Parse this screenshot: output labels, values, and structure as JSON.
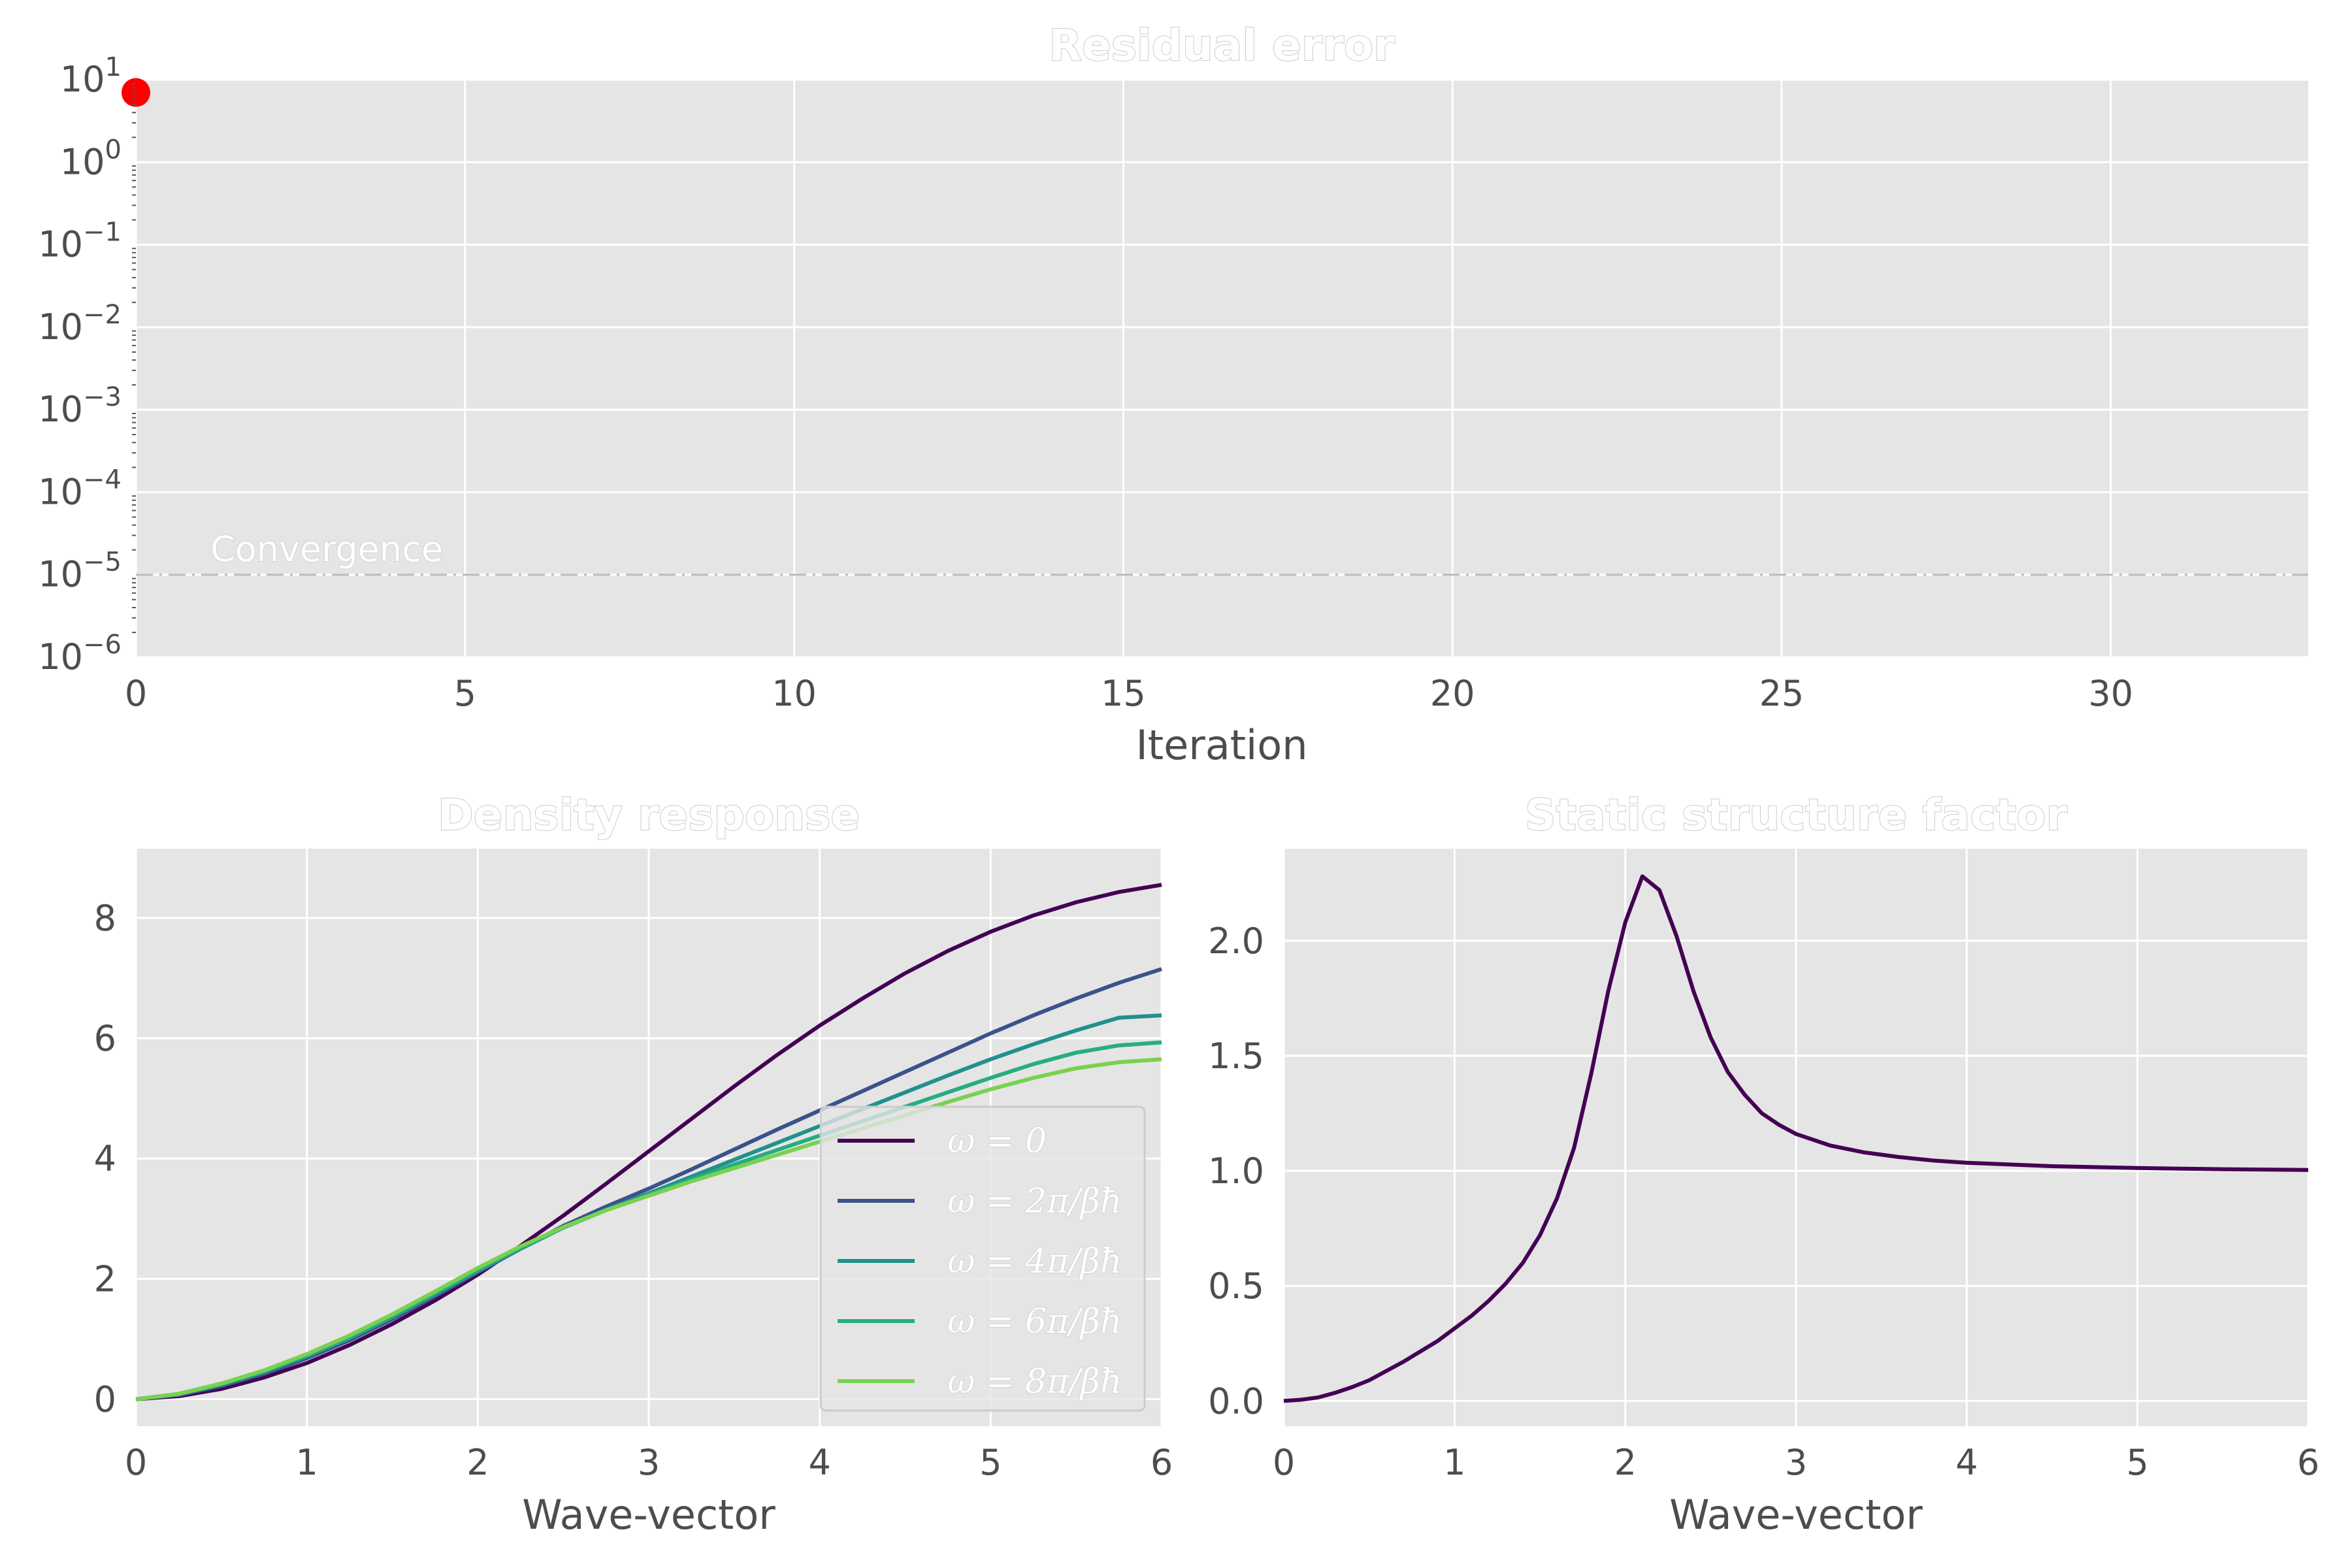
{
  "colors": {
    "axes_bg": "#e5e5e5",
    "grid": "#ffffff",
    "text": "#4d4d4d",
    "marker": "#ff0000"
  },
  "chart_data": [
    {
      "id": "residual",
      "type": "scatter",
      "title": "Residual error",
      "xlabel": "Iteration",
      "ylabel": "",
      "yscale": "log",
      "xlim": [
        0,
        33
      ],
      "ylim": [
        1e-06,
        10
      ],
      "xticks": [
        0,
        5,
        10,
        15,
        20,
        25,
        30
      ],
      "yticks": [
        {
          "base": "10",
          "exp": "1"
        },
        {
          "base": "10",
          "exp": "0"
        },
        {
          "base": "10",
          "exp": "−1"
        },
        {
          "base": "10",
          "exp": "−2"
        },
        {
          "base": "10",
          "exp": "−3"
        },
        {
          "base": "10",
          "exp": "−4"
        },
        {
          "base": "10",
          "exp": "−5"
        },
        {
          "base": "10",
          "exp": "−6"
        }
      ],
      "ytick_values": [
        10.0,
        1.0,
        0.1,
        0.01,
        0.001,
        0.0001,
        1e-05,
        1e-06
      ],
      "points": [
        {
          "x": 0,
          "y": 7
        }
      ],
      "hline": {
        "y": 1e-05,
        "label": "Convergence",
        "style": "dashed"
      },
      "grid": true
    },
    {
      "id": "density",
      "type": "line",
      "title": "Density response",
      "xlabel": "Wave-vector",
      "ylabel": "",
      "xlim": [
        0,
        6
      ],
      "ylim": [
        -0.45,
        9.15
      ],
      "xticks": [
        0,
        1,
        2,
        3,
        4,
        5,
        6
      ],
      "yticks": [
        0,
        2,
        4,
        6,
        8
      ],
      "legend_position": "lower right",
      "x": [
        0,
        0.25,
        0.5,
        0.75,
        1,
        1.25,
        1.5,
        1.75,
        2,
        2.25,
        2.5,
        2.75,
        3,
        3.25,
        3.5,
        3.75,
        4,
        4.25,
        4.5,
        4.75,
        5,
        5.25,
        5.5,
        5.75,
        6
      ],
      "series": [
        {
          "name": "ω = 0",
          "color": "#440154",
          "values": [
            0,
            0.05,
            0.17,
            0.36,
            0.6,
            0.9,
            1.25,
            1.64,
            2.07,
            2.55,
            3.05,
            3.58,
            4.12,
            4.66,
            5.2,
            5.72,
            6.21,
            6.66,
            7.08,
            7.45,
            7.77,
            8.04,
            8.26,
            8.43,
            8.55
          ]
        },
        {
          "name": "ω = 2π/βħ",
          "color": "#3b528b",
          "values": [
            0,
            0.07,
            0.22,
            0.42,
            0.68,
            0.98,
            1.33,
            1.71,
            2.11,
            2.5,
            2.88,
            3.2,
            3.5,
            3.82,
            4.15,
            4.48,
            4.8,
            5.12,
            5.44,
            5.76,
            6.08,
            6.38,
            6.66,
            6.92,
            7.15
          ]
        },
        {
          "name": "ω = 4π/βħ",
          "color": "#21918c",
          "values": [
            0,
            0.08,
            0.24,
            0.45,
            0.71,
            1.01,
            1.36,
            1.74,
            2.13,
            2.5,
            2.85,
            3.15,
            3.42,
            3.7,
            3.98,
            4.26,
            4.54,
            4.82,
            5.1,
            5.38,
            5.65,
            5.9,
            6.13,
            6.34,
            6.38
          ]
        },
        {
          "name": "ω = 6π/βħ",
          "color": "#27ad81",
          "values": [
            0,
            0.08,
            0.25,
            0.46,
            0.73,
            1.03,
            1.38,
            1.76,
            2.15,
            2.52,
            2.85,
            3.14,
            3.4,
            3.65,
            3.9,
            4.14,
            4.38,
            4.62,
            4.86,
            5.1,
            5.34,
            5.57,
            5.76,
            5.88,
            5.93
          ]
        },
        {
          "name": "ω = 8π/βħ",
          "color": "#7ad151",
          "values": [
            0,
            0.09,
            0.26,
            0.48,
            0.75,
            1.06,
            1.41,
            1.79,
            2.18,
            2.54,
            2.86,
            3.14,
            3.38,
            3.62,
            3.84,
            4.06,
            4.28,
            4.5,
            4.72,
            4.94,
            5.15,
            5.34,
            5.5,
            5.6,
            5.65
          ]
        }
      ],
      "grid": true
    },
    {
      "id": "ssf",
      "type": "line",
      "title": "Static structure factor",
      "xlabel": "Wave-vector",
      "ylabel": "",
      "xlim": [
        0,
        6
      ],
      "ylim": [
        -0.11,
        2.4
      ],
      "xticks": [
        0,
        1,
        2,
        3,
        4,
        5,
        6
      ],
      "yticks": [
        "0.0",
        "0.5",
        "1.0",
        "1.5",
        "2.0"
      ],
      "ytick_values": [
        0,
        0.5,
        1.0,
        1.5,
        2.0
      ],
      "x": [
        0,
        0.1,
        0.2,
        0.3,
        0.4,
        0.5,
        0.6,
        0.7,
        0.8,
        0.9,
        1.0,
        1.1,
        1.2,
        1.3,
        1.4,
        1.5,
        1.6,
        1.7,
        1.8,
        1.9,
        2.0,
        2.1,
        2.2,
        2.3,
        2.4,
        2.5,
        2.6,
        2.7,
        2.8,
        2.9,
        3.0,
        3.2,
        3.4,
        3.6,
        3.8,
        4.0,
        4.5,
        5.0,
        5.5,
        6.0
      ],
      "series": [
        {
          "name": "",
          "color": "#440154",
          "values": [
            0,
            0.005,
            0.015,
            0.035,
            0.06,
            0.09,
            0.13,
            0.17,
            0.215,
            0.26,
            0.315,
            0.37,
            0.435,
            0.51,
            0.6,
            0.72,
            0.88,
            1.1,
            1.42,
            1.78,
            2.08,
            2.28,
            2.22,
            2.02,
            1.78,
            1.58,
            1.43,
            1.33,
            1.25,
            1.2,
            1.16,
            1.11,
            1.08,
            1.06,
            1.045,
            1.035,
            1.02,
            1.012,
            1.007,
            1.004
          ]
        }
      ],
      "grid": true
    }
  ]
}
